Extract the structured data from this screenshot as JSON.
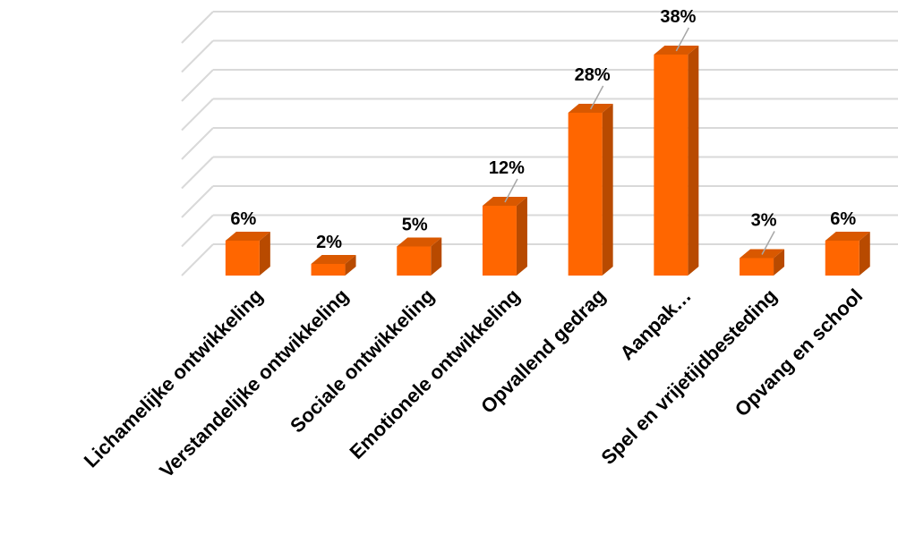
{
  "chart_data": {
    "type": "bar",
    "style": "3d-column",
    "categories": [
      "Lichamelijke ontwikkeling",
      "Verstandelijke ontwikkeling",
      "Sociale ontwikkeling",
      "Emotionele ontwikkeling",
      "Opvallend gedrag",
      "Aanpak…",
      "Spel en vrijetijdbesteding",
      "Opvang en school"
    ],
    "values": [
      6,
      2,
      5,
      12,
      28,
      38,
      3,
      6
    ],
    "value_labels": [
      "6%",
      "2%",
      "5%",
      "12%",
      "28%",
      "38%",
      "3%",
      "6%"
    ],
    "unit": "%",
    "ylim": [
      0,
      40
    ],
    "gridlines": true,
    "y_tick_labels_visible": false,
    "legend": "none",
    "colors": {
      "bar_front": "#FF6600",
      "bar_side": "#B84A00",
      "bar_top": "#D95800",
      "grid": "#D9D9D9",
      "leader": "#A6A6A6"
    }
  }
}
